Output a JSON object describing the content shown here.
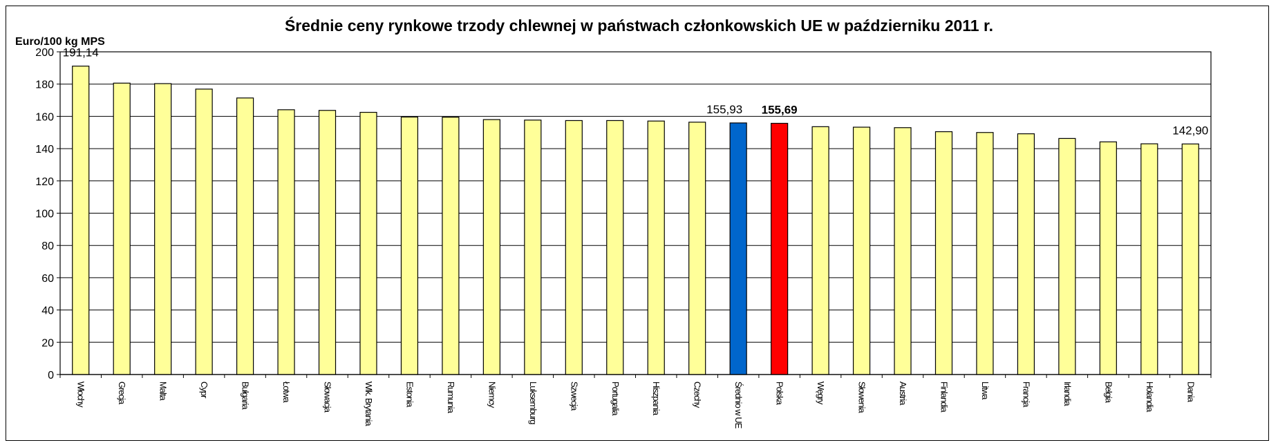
{
  "chart_data": {
    "type": "bar",
    "title": "Średnie ceny rynkowe trzody chlewnej w państwach członkowskich UE w październiku 2011 r.",
    "ylabel": "Euro/100 kg MPS",
    "xlabel": "",
    "ylim": [
      0,
      200
    ],
    "yticks": [
      0,
      20,
      40,
      60,
      80,
      100,
      120,
      140,
      160,
      180,
      200
    ],
    "grid": true,
    "categories": [
      "Włochy",
      "Grecja",
      "Malta",
      "Cypr",
      "Bułgaria",
      "Łotwa",
      "Słowacja",
      "Wlk. Brytania",
      "Estonia",
      "Rumunia",
      "Niemcy",
      "Luksemburg",
      "Szwecja",
      "Portugalia",
      "Hiszpania",
      "Czechy",
      "Średnio w UE",
      "Polska",
      "Węgry",
      "Słowenia",
      "Austria",
      "Finlandia",
      "Litwa",
      "Francja",
      "Irlandia",
      "Belgia",
      "Holandia",
      "Dania"
    ],
    "values": [
      191.14,
      180.6,
      180.3,
      176.9,
      171.4,
      164.1,
      163.7,
      162.5,
      159.6,
      159.5,
      158.0,
      157.7,
      157.4,
      157.4,
      157.1,
      156.4,
      155.93,
      155.69,
      153.6,
      153.3,
      153.0,
      150.5,
      150.0,
      149.2,
      146.3,
      144.2,
      143.0,
      142.9
    ],
    "colors": {
      "default": "#ffff99",
      "eu_average": "#0066cc",
      "poland": "#ff0000",
      "outline": "#000000"
    },
    "highlight": {
      "eu_average_index": 16,
      "poland_index": 17
    },
    "data_labels": [
      {
        "index": 0,
        "text": "191,14",
        "bold": false
      },
      {
        "index": 16,
        "text": "155,93",
        "bold": false
      },
      {
        "index": 17,
        "text": "155,69",
        "bold": true
      },
      {
        "index": 27,
        "text": "142,90",
        "bold": false
      }
    ]
  }
}
